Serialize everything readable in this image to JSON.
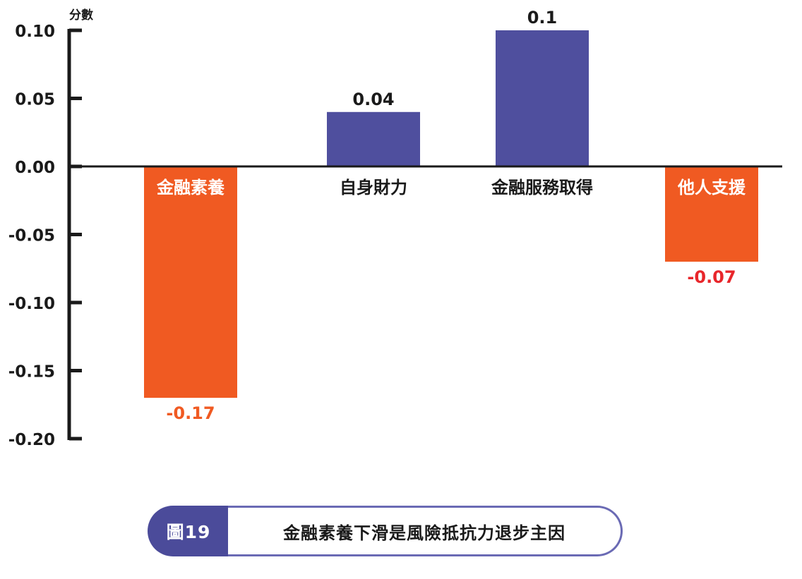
{
  "chart_data": {
    "type": "bar",
    "ylabel": "分數",
    "ylim": [
      -0.2,
      0.1
    ],
    "yticks": [
      "0.10",
      "0.05",
      "0.00",
      "-0.05",
      "-0.10",
      "-0.15",
      "-0.20"
    ],
    "ytick_values": [
      0.1,
      0.05,
      0.0,
      -0.05,
      -0.1,
      -0.15,
      -0.2
    ],
    "categories": [
      "金融素養",
      "自身財力",
      "金融服務取得",
      "他人支援"
    ],
    "values": [
      -0.17,
      0.04,
      0.1,
      -0.07
    ],
    "value_labels": [
      "-0.17",
      "0.04",
      "0.1",
      "-0.07"
    ],
    "colors": {
      "positive": "#4f4f9e",
      "negative": "#f05a22",
      "label_neg_first": "#f05a22",
      "label_neg_last": "#e8262b",
      "axis": "#1a1a1a"
    }
  },
  "caption": {
    "tab": "圖19",
    "title": "金融素養下滑是風險抵抗力退步主因"
  }
}
